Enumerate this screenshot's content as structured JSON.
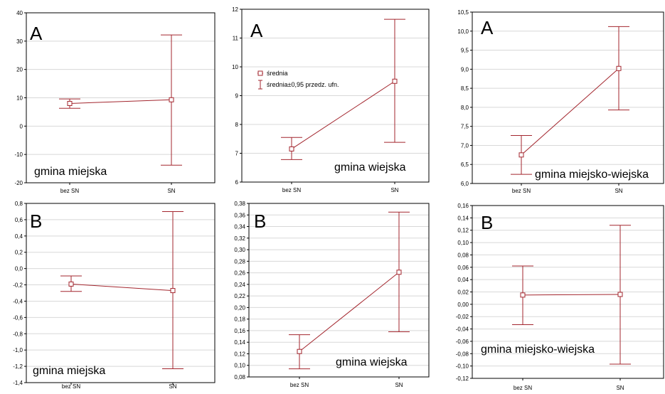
{
  "colors": {
    "series": "#a3262e",
    "grid": "#d8d8d8",
    "frame": "#000000",
    "text": "#000000"
  },
  "legend": {
    "mean_label": "średnia",
    "ci_label": "średnia±0,95 przedz. ufn.",
    "placement": "upper-left of panel A (gmina wiejska)"
  },
  "chart_data": [
    {
      "type": "line",
      "panel": "A",
      "area": "gmina miejska",
      "categories": [
        "bez SN",
        "SN"
      ],
      "y_ticks": [
        "-20",
        "-10",
        "0",
        "10",
        "20",
        "30",
        "40"
      ],
      "ylim": [
        -20,
        40
      ],
      "grid": true,
      "mean": [
        8,
        9.3
      ],
      "ci_low": [
        6.3,
        -13.8
      ],
      "ci_high": [
        9.6,
        32.2
      ]
    },
    {
      "type": "line",
      "panel": "A",
      "area": "gmina wiejska",
      "categories": [
        "bez SN",
        "SN"
      ],
      "y_ticks": [
        "6",
        "7",
        "8",
        "9",
        "10",
        "11",
        "12"
      ],
      "ylim": [
        6,
        12
      ],
      "grid": true,
      "mean": [
        7.15,
        9.5
      ],
      "ci_low": [
        6.78,
        7.38
      ],
      "ci_high": [
        7.55,
        11.65
      ]
    },
    {
      "type": "line",
      "panel": "A",
      "area": "gmina miejsko-wiejska",
      "categories": [
        "bez SN",
        "SN"
      ],
      "y_ticks": [
        "6,0",
        "6,5",
        "7,0",
        "7,5",
        "8,0",
        "8,5",
        "9,0",
        "9,5",
        "10,0",
        "10,5"
      ],
      "ylim": [
        6.0,
        10.5
      ],
      "grid": true,
      "mean": [
        6.75,
        9.02
      ],
      "ci_low": [
        6.24,
        7.93
      ],
      "ci_high": [
        7.26,
        10.12
      ]
    },
    {
      "type": "line",
      "panel": "B",
      "area": "gmina miejska",
      "categories": [
        "bez SN",
        "SN"
      ],
      "y_ticks": [
        "-1,4",
        "-1,2",
        "-1,0",
        "-0,8",
        "-0,6",
        "-0,4",
        "-0,2",
        "0,0",
        "0,2",
        "0,4",
        "0,6",
        "0,8"
      ],
      "ylim": [
        -1.4,
        0.8
      ],
      "grid": true,
      "mean": [
        -0.19,
        -0.27
      ],
      "ci_low": [
        -0.28,
        -1.23
      ],
      "ci_high": [
        -0.09,
        0.7
      ]
    },
    {
      "type": "line",
      "panel": "B",
      "area": "gmina wiejska",
      "categories": [
        "bez SN",
        "SN"
      ],
      "y_ticks": [
        "0,08",
        "0,10",
        "0,12",
        "0,14",
        "0,16",
        "0,18",
        "0,20",
        "0,22",
        "0,24",
        "0,26",
        "0,28",
        "0,30",
        "0,32",
        "0,34",
        "0,36",
        "0,38"
      ],
      "ylim": [
        0.08,
        0.38
      ],
      "grid": true,
      "mean": [
        0.124,
        0.261
      ],
      "ci_low": [
        0.094,
        0.158
      ],
      "ci_high": [
        0.153,
        0.365
      ]
    },
    {
      "type": "line",
      "panel": "B",
      "area": "gmina miejsko-wiejska",
      "categories": [
        "bez SN",
        "SN"
      ],
      "y_ticks": [
        "-0,12",
        "-0,10",
        "-0,08",
        "-0,06",
        "-0,04",
        "-0,02",
        "0,00",
        "0,02",
        "0,04",
        "0,06",
        "0,08",
        "0,10",
        "0,12",
        "0,14",
        "0,16"
      ],
      "ylim": [
        -0.12,
        0.16
      ],
      "grid": true,
      "mean": [
        0.015,
        0.016
      ],
      "ci_low": [
        -0.033,
        -0.097
      ],
      "ci_high": [
        0.062,
        0.128
      ]
    }
  ]
}
